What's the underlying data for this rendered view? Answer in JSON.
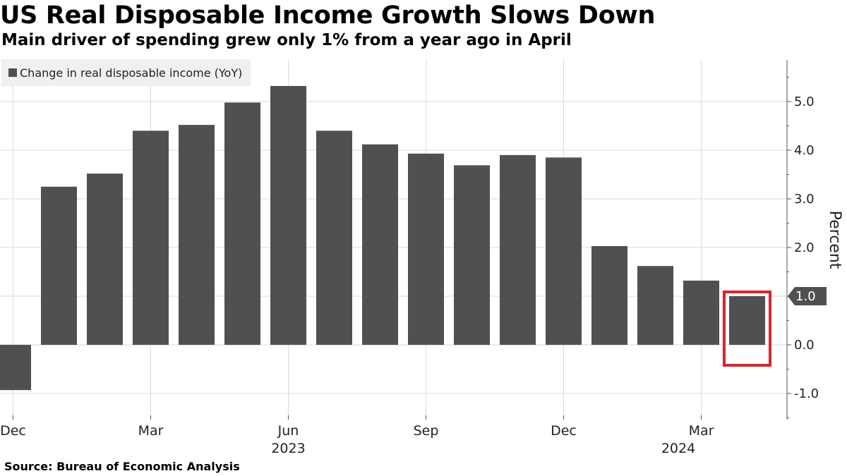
{
  "header": {
    "title": "US Real Disposable Income Growth Slows Down",
    "subtitle": "Main driver of spending grew only 1% from a year ago in April"
  },
  "footer": {
    "source": "Source:  Bureau of Economic Analysis"
  },
  "colors": {
    "bar": "#505050",
    "grid": "#d9d9d9",
    "highlight": "#d9252a",
    "last_value_tag": "#505050"
  },
  "chart_data": {
    "type": "bar",
    "title": "US Real Disposable Income Growth Slows Down",
    "subtitle": "Main driver of spending grew only 1% from a year ago in April",
    "categories": [
      "Dec 2022",
      "Jan 2023",
      "Feb 2023",
      "Mar 2023",
      "Apr 2023",
      "May 2023",
      "Jun 2023",
      "Jul 2023",
      "Aug 2023",
      "Sep 2023",
      "Oct 2023",
      "Nov 2023",
      "Dec 2023",
      "Jan 2024",
      "Feb 2024",
      "Mar 2024",
      "Apr 2024"
    ],
    "series": [
      {
        "name": "Change in real disposable income (YoY)",
        "values": [
          -0.93,
          3.25,
          3.52,
          4.4,
          4.52,
          4.98,
          5.32,
          4.4,
          4.12,
          3.93,
          3.69,
          3.9,
          3.85,
          2.03,
          1.62,
          1.32,
          1.0
        ]
      }
    ],
    "ylabel": "Percent",
    "ylim": [
      -1.5,
      5.9
    ],
    "yticks": [
      -1.0,
      0.0,
      1.0,
      2.0,
      3.0,
      4.0,
      5.0
    ],
    "ytick_labels": [
      "-1.0",
      "0.0",
      "1.0",
      "2.0",
      "3.0",
      "4.0",
      "5.0"
    ],
    "x_ticks": [
      {
        "index": 0,
        "label": "Dec"
      },
      {
        "index": 3,
        "label": "Mar"
      },
      {
        "index": 6,
        "label": "Jun"
      },
      {
        "index": 9,
        "label": "Sep"
      },
      {
        "index": 12,
        "label": "Dec"
      },
      {
        "index": 15,
        "label": "Mar"
      }
    ],
    "year_labels": [
      {
        "index": 6,
        "label": "2023"
      },
      {
        "index": 14.5,
        "label": "2024"
      }
    ],
    "last_value_label": "1.0",
    "highlighted_index": 16,
    "legend": "Change in real disposable income (YoY)",
    "legend_position": "top-left",
    "grid": true,
    "y_axis_side": "right"
  }
}
